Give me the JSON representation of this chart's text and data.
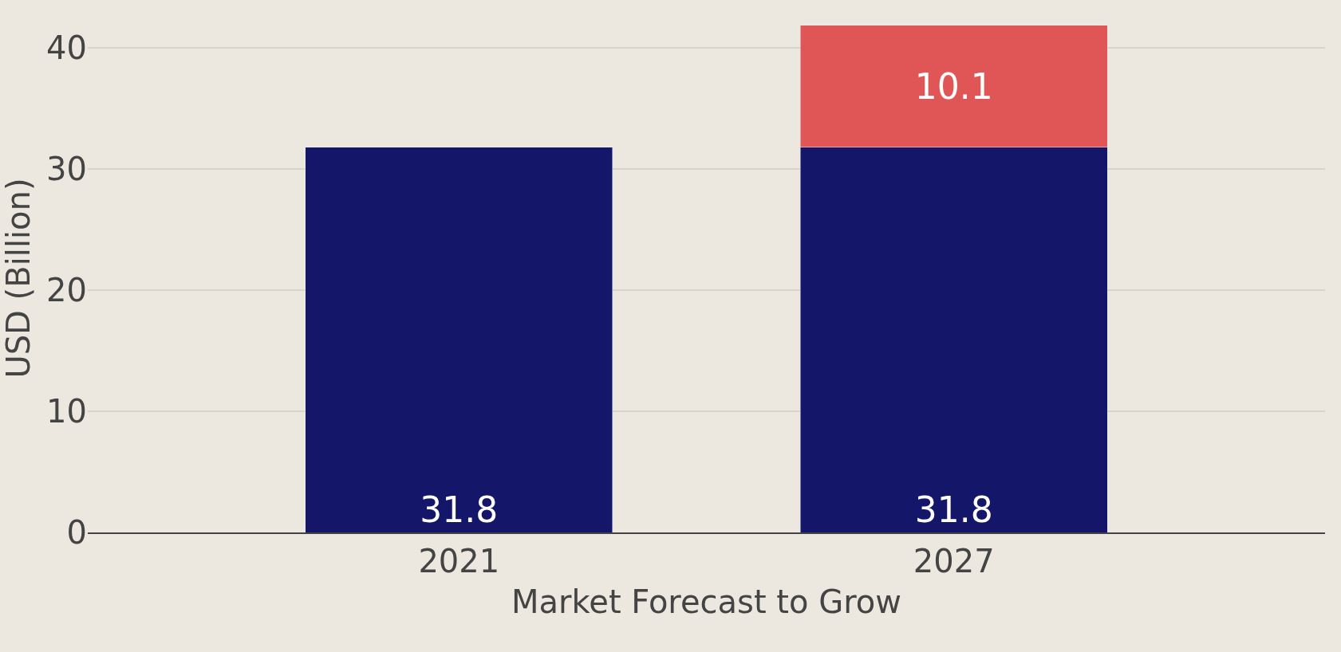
{
  "chart_data": {
    "type": "bar",
    "stacked": true,
    "xlabel": "Market Forecast to Grow",
    "ylabel": "USD (Billion)",
    "categories": [
      "2021",
      "2027"
    ],
    "series": [
      {
        "color": "#14166a",
        "values": [
          31.8,
          31.8
        ]
      },
      {
        "color": "#e05555",
        "values": [
          null,
          10.1
        ]
      }
    ],
    "ylim": [
      0,
      42
    ],
    "yticks": [
      0,
      10,
      20,
      30,
      40
    ],
    "grid": "y",
    "data_labels": true
  }
}
